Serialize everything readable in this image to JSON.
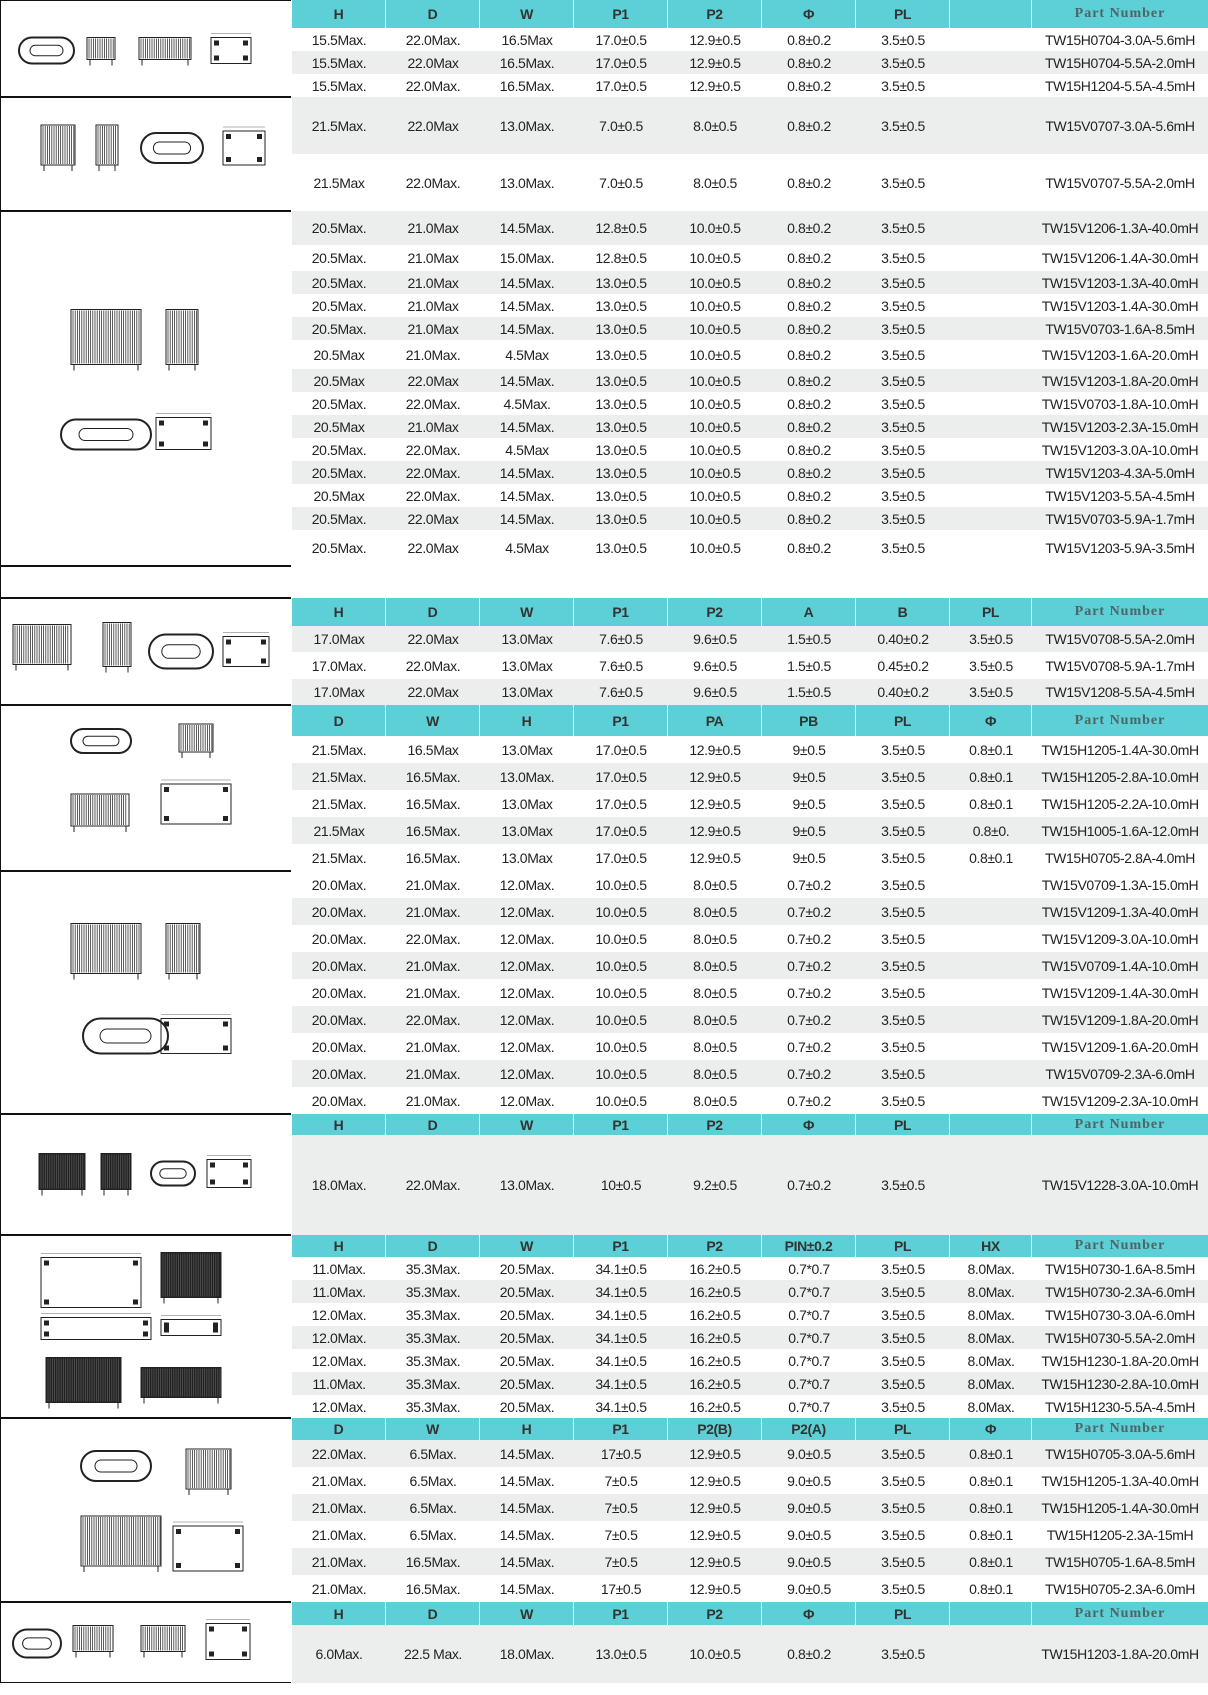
{
  "colors": {
    "header_bg": "#5dcfd6",
    "stripe": "#eceeed",
    "border": "#111111"
  },
  "sections": [
    {
      "figure": "fig-horizontal-coil-oval-base",
      "header": [
        "H",
        "D",
        "W",
        "P1",
        "P2",
        "Φ",
        "PL",
        "",
        "Part Number"
      ],
      "rows": [
        [
          "15.5Max.",
          "22.0Max.",
          "16.5Max",
          "17.0±0.5",
          "12.9±0.5",
          "0.8±0.2",
          "3.5±0.5",
          "",
          "TW15H0704-3.0A-5.6mH"
        ],
        [
          "15.5Max.",
          "22.0Max",
          "16.5Max.",
          "17.0±0.5",
          "12.9±0.5",
          "0.8±0.2",
          "3.5±0.5",
          "",
          "TW15H0704-5.5A-2.0mH"
        ],
        [
          "15.5Max.",
          "22.0Max.",
          "16.5Max.",
          "17.0±0.5",
          "12.9±0.5",
          "0.8±0.2",
          "3.5±0.5",
          "",
          "TW15H1204-5.5A-4.5mH"
        ]
      ]
    },
    {
      "figure": "fig-vertical-coil-small",
      "header": null,
      "rows": [
        [
          "21.5Max.",
          "22.0Max",
          "13.0Max.",
          "7.0±0.5",
          "8.0±0.5",
          "0.8±0.2",
          "3.5±0.5",
          "",
          "TW15V0707-3.0A-5.6mH"
        ],
        [
          "21.5Max",
          "22.0Max.",
          "13.0Max.",
          "7.0±0.5",
          "8.0±0.5",
          "0.8±0.2",
          "3.5±0.5",
          "",
          "TW15V0707-5.5A-2.0mH"
        ]
      ]
    },
    {
      "figure": "fig-vertical-coil-large",
      "header": null,
      "rows": [
        [
          "20.5Max.",
          "21.0Max",
          "14.5Max.",
          "12.8±0.5",
          "10.0±0.5",
          "0.8±0.2",
          "3.5±0.5",
          "",
          "TW15V1206-1.3A-40.0mH"
        ],
        [
          "20.5Max.",
          "21.0Max",
          "15.0Max.",
          "12.8±0.5",
          "10.0±0.5",
          "0.8±0.2",
          "3.5±0.5",
          "",
          "TW15V1206-1.4A-30.0mH"
        ],
        [
          "20.5Max.",
          "21.0Max",
          "14.5Max.",
          "13.0±0.5",
          "10.0±0.5",
          "0.8±0.2",
          "3.5±0.5",
          "",
          "TW15V1203-1.3A-40.0mH"
        ],
        [
          "20.5Max.",
          "21.0Max",
          "14.5Max.",
          "13.0±0.5",
          "10.0±0.5",
          "0.8±0.2",
          "3.5±0.5",
          "",
          "TW15V1203-1.4A-30.0mH"
        ],
        [
          "20.5Max.",
          "21.0Max",
          "14.5Max.",
          "13.0±0.5",
          "10.0±0.5",
          "0.8±0.2",
          "3.5±0.5",
          "",
          "TW15V0703-1.6A-8.5mH"
        ],
        [
          "20.5Max",
          "21.0Max.",
          "4.5Max",
          "13.0±0.5",
          "10.0±0.5",
          "0.8±0.2",
          "3.5±0.5",
          "",
          "TW15V1203-1.6A-20.0mH"
        ],
        [
          "20.5Max",
          "22.0Max",
          "14.5Max.",
          "13.0±0.5",
          "10.0±0.5",
          "0.8±0.2",
          "3.5±0.5",
          "",
          "TW15V1203-1.8A-20.0mH"
        ],
        [
          "20.5Max.",
          "22.0Max.",
          "4.5Max.",
          "13.0±0.5",
          "10.0±0.5",
          "0.8±0.2",
          "3.5±0.5",
          "",
          "TW15V0703-1.8A-10.0mH"
        ],
        [
          "20.5Max",
          "21.0Max",
          "14.5Max.",
          "13.0±0.5",
          "10.0±0.5",
          "0.8±0.2",
          "3.5±0.5",
          "",
          "TW15V1203-2.3A-15.0mH"
        ],
        [
          "20.5Max.",
          "22.0Max.",
          "4.5Max",
          "13.0±0.5",
          "10.0±0.5",
          "0.8±0.2",
          "3.5±0.5",
          "",
          "TW15V1203-3.0A-10.0mH"
        ],
        [
          "20.5Max.",
          "22.0Max.",
          "14.5Max.",
          "13.0±0.5",
          "10.0±0.5",
          "0.8±0.2",
          "3.5±0.5",
          "",
          "TW15V1203-4.3A-5.0mH"
        ],
        [
          "20.5Max",
          "22.0Max.",
          "14.5Max.",
          "13.0±0.5",
          "10.0±0.5",
          "0.8±0.2",
          "3.5±0.5",
          "",
          "TW15V1203-5.5A-4.5mH"
        ],
        [
          "20.5Max.",
          "22.0Max",
          "14.5Max.",
          "13.0±0.5",
          "10.0±0.5",
          "0.8±0.2",
          "3.5±0.5",
          "",
          "TW15V0703-5.9A-1.7mH"
        ],
        [
          "20.5Max.",
          "22.0Max",
          "4.5Max",
          "13.0±0.5",
          "10.0±0.5",
          "0.8±0.2",
          "3.5±0.5",
          "",
          "TW15V1203-5.9A-3.5mH"
        ]
      ]
    },
    {
      "figure": "fig-blank",
      "header": null,
      "rows": [
        [
          "",
          "",
          "",
          "",
          "",
          "",
          "",
          "",
          ""
        ]
      ]
    },
    {
      "figure": "fig-vertical-coil-a-b",
      "header": [
        "H",
        "D",
        "W",
        "P1",
        "P2",
        "A",
        "B",
        "PL",
        "Part Number"
      ],
      "rows": [
        [
          "17.0Max",
          "22.0Max",
          "13.0Max",
          "7.6±0.5",
          "9.6±0.5",
          "1.5±0.5",
          "0.40±0.2",
          "3.5±0.5",
          "TW15V0708-5.5A-2.0mH"
        ],
        [
          "17.0Max.",
          "22.0Max.",
          "13.0Max",
          "7.6±0.5",
          "9.6±0.5",
          "1.5±0.5",
          "0.45±0.2",
          "3.5±0.5",
          "TW15V0708-5.9A-1.7mH"
        ],
        [
          "17.0Max",
          "22.0Max",
          "13.0Max",
          "7.6±0.5",
          "9.6±0.5",
          "1.5±0.5",
          "0.40±0.2",
          "3.5±0.5",
          "TW15V1208-5.5A-4.5mH"
        ]
      ]
    },
    {
      "figure": "fig-horizontal-coil-4pin",
      "header": [
        "D",
        "W",
        "H",
        "P1",
        "PA",
        "PB",
        "PL",
        "Φ",
        "Part Number"
      ],
      "rows": [
        [
          "21.5Max.",
          "16.5Max",
          "13.0Max",
          "17.0±0.5",
          "12.9±0.5",
          "9±0.5",
          "3.5±0.5",
          "0.8±0.1",
          "TW15H1205-1.4A-30.0mH"
        ],
        [
          "21.5Max.",
          "16.5Max.",
          "13.0Max.",
          "17.0±0.5",
          "12.9±0.5",
          "9±0.5",
          "3.5±0.5",
          "0.8±0.1",
          "TW15H1205-2.8A-10.0mH"
        ],
        [
          "21.5Max.",
          "16.5Max.",
          "13.0Max",
          "17.0±0.5",
          "12.9±0.5",
          "9±0.5",
          "3.5±0.5",
          "0.8±0.1",
          "TW15H1205-2.2A-10.0mH"
        ],
        [
          "21.5Max",
          "16.5Max.",
          "13.0Max",
          "17.0±0.5",
          "12.9±0.5",
          "9±0.5",
          "3.5±0.5",
          "0.8±0.",
          "TW15H1005-1.6A-12.0mH"
        ],
        [
          "21.5Max.",
          "16.5Max.",
          "13.0Max",
          "17.0±0.5",
          "12.9±0.5",
          "9±0.5",
          "3.5±0.5",
          "0.8±0.1",
          "TW15H0705-2.8A-4.0mH"
        ]
      ]
    },
    {
      "figure": "fig-vertical-coil-oval",
      "header": null,
      "rows": [
        [
          "20.0Max.",
          "21.0Max.",
          "12.0Max.",
          "10.0±0.5",
          "8.0±0.5",
          "0.7±0.2",
          "3.5±0.5",
          "",
          "TW15V0709-1.3A-15.0mH"
        ],
        [
          "20.0Max.",
          "21.0Max.",
          "12.0Max.",
          "10.0±0.5",
          "8.0±0.5",
          "0.7±0.2",
          "3.5±0.5",
          "",
          "TW15V1209-1.3A-40.0mH"
        ],
        [
          "20.0Max.",
          "22.0Max.",
          "12.0Max.",
          "10.0±0.5",
          "8.0±0.5",
          "0.7±0.2",
          "3.5±0.5",
          "",
          "TW15V1209-3.0A-10.0mH"
        ],
        [
          "20.0Max.",
          "21.0Max.",
          "12.0Max.",
          "10.0±0.5",
          "8.0±0.5",
          "0.7±0.2",
          "3.5±0.5",
          "",
          "TW15V0709-1.4A-10.0mH"
        ],
        [
          "20.0Max.",
          "21.0Max.",
          "12.0Max.",
          "10.0±0.5",
          "8.0±0.5",
          "0.7±0.2",
          "3.5±0.5",
          "",
          "TW15V1209-1.4A-30.0mH"
        ],
        [
          "20.0Max.",
          "22.0Max.",
          "12.0Max.",
          "10.0±0.5",
          "8.0±0.5",
          "0.7±0.2",
          "3.5±0.5",
          "",
          "TW15V1209-1.8A-20.0mH"
        ],
        [
          "20.0Max.",
          "21.0Max.",
          "12.0Max.",
          "10.0±0.5",
          "8.0±0.5",
          "0.7±0.2",
          "3.5±0.5",
          "",
          "TW15V1209-1.6A-20.0mH"
        ],
        [
          "20.0Max.",
          "21.0Max.",
          "12.0Max.",
          "10.0±0.5",
          "8.0±0.5",
          "0.7±0.2",
          "3.5±0.5",
          "",
          "TW15V0709-2.3A-6.0mH"
        ],
        [
          "20.0Max.",
          "21.0Max.",
          "12.0Max.",
          "10.0±0.5",
          "8.0±0.5",
          "0.7±0.2",
          "3.5±0.5",
          "",
          "TW15V1209-2.3A-10.0mH"
        ]
      ]
    },
    {
      "figure": "fig-vertical-coil-dark",
      "header": [
        "H",
        "D",
        "W",
        "P1",
        "P2",
        "Φ",
        "PL",
        "",
        "Part Number"
      ],
      "rows": [
        [
          "18.0Max.",
          "22.0Max.",
          "13.0Max.",
          "10±0.5",
          "9.2±0.5",
          "0.7±0.2",
          "3.5±0.5",
          "",
          "TW15V1228-3.0A-10.0mH"
        ]
      ]
    },
    {
      "figure": "fig-flat-smd-coil",
      "header": [
        "H",
        "D",
        "W",
        "P1",
        "P2",
        "PIN±0.2",
        "PL",
        "HX",
        "Part Number"
      ],
      "rows": [
        [
          "11.0Max.",
          "35.3Max.",
          "20.5Max.",
          "34.1±0.5",
          "16.2±0.5",
          "0.7*0.7",
          "3.5±0.5",
          "8.0Max.",
          "TW15H0730-1.6A-8.5mH"
        ],
        [
          "11.0Max.",
          "35.3Max.",
          "20.5Max.",
          "34.1±0.5",
          "16.2±0.5",
          "0.7*0.7",
          "3.5±0.5",
          "8.0Max.",
          "TW15H0730-2.3A-6.0mH"
        ],
        [
          "12.0Max.",
          "35.3Max.",
          "20.5Max.",
          "34.1±0.5",
          "16.2±0.5",
          "0.7*0.7",
          "3.5±0.5",
          "8.0Max.",
          "TW15H0730-3.0A-6.0mH"
        ],
        [
          "12.0Max.",
          "35.3Max.",
          "20.5Max.",
          "34.1±0.5",
          "16.2±0.5",
          "0.7*0.7",
          "3.5±0.5",
          "8.0Max.",
          "TW15H0730-5.5A-2.0mH"
        ],
        [
          "12.0Max.",
          "35.3Max.",
          "20.5Max.",
          "34.1±0.5",
          "16.2±0.5",
          "0.7*0.7",
          "3.5±0.5",
          "8.0Max.",
          "TW15H1230-1.8A-20.0mH"
        ],
        [
          "11.0Max.",
          "35.3Max.",
          "20.5Max.",
          "34.1±0.5",
          "16.2±0.5",
          "0.7*0.7",
          "3.5±0.5",
          "8.0Max.",
          "TW15H1230-2.8A-10.0mH"
        ],
        [
          "12.0Max.",
          "35.3Max.",
          "20.5Max.",
          "34.1±0.5",
          "16.2±0.5",
          "0.7*0.7",
          "3.5±0.5",
          "8.0Max.",
          "TW15H1230-5.5A-4.5mH"
        ]
      ]
    },
    {
      "figure": "fig-horizontal-coil-p2ab",
      "header": [
        "D",
        "W",
        "H",
        "P1",
        "P2(B)",
        "P2(A)",
        "PL",
        "Φ",
        "Part Number"
      ],
      "rows": [
        [
          "22.0Max.",
          "6.5Max.",
          "14.5Max.",
          "17±0.5",
          "12.9±0.5",
          "9.0±0.5",
          "3.5±0.5",
          "0.8±0.1",
          "TW15H0705-3.0A-5.6mH"
        ],
        [
          "21.0Max.",
          "6.5Max.",
          "14.5Max.",
          "7±0.5",
          "12.9±0.5",
          "9.0±0.5",
          "3.5±0.5",
          "0.8±0.1",
          "TW15H1205-1.3A-40.0mH"
        ],
        [
          "21.0Max.",
          "6.5Max.",
          "14.5Max.",
          "7±0.5",
          "12.9±0.5",
          "9.0±0.5",
          "3.5±0.5",
          "0.8±0.1",
          "TW15H1205-1.4A-30.0mH"
        ],
        [
          "21.0Max.",
          "6.5Max.",
          "14.5Max.",
          "7±0.5",
          "12.9±0.5",
          "9.0±0.5",
          "3.5±0.5",
          "0.8±0.1",
          "TW15H1205-2.3A-15mH"
        ],
        [
          "21.0Max.",
          "16.5Max.",
          "14.5Max.",
          "7±0.5",
          "12.9±0.5",
          "9.0±0.5",
          "3.5±0.5",
          "0.8±0.1",
          "TW15H0705-1.6A-8.5mH"
        ],
        [
          "21.0Max.",
          "16.5Max.",
          "14.5Max.",
          "17±0.5",
          "12.9±0.5",
          "9.0±0.5",
          "3.5±0.5",
          "0.8±0.1",
          "TW15H0705-2.3A-6.0mH"
        ]
      ]
    },
    {
      "figure": "fig-horizontal-coil-low",
      "header": [
        "H",
        "D",
        "W",
        "P1",
        "P2",
        "Φ",
        "PL",
        "",
        "Part Number"
      ],
      "rows": [
        [
          "6.0Max.",
          "22.5 Max.",
          "18.0Max.",
          "13.0±0.5",
          "10.0±0.5",
          "0.8±0.2",
          "3.5±0.5",
          "",
          "TW15H1203-1.8A-20.0mH"
        ]
      ]
    }
  ]
}
